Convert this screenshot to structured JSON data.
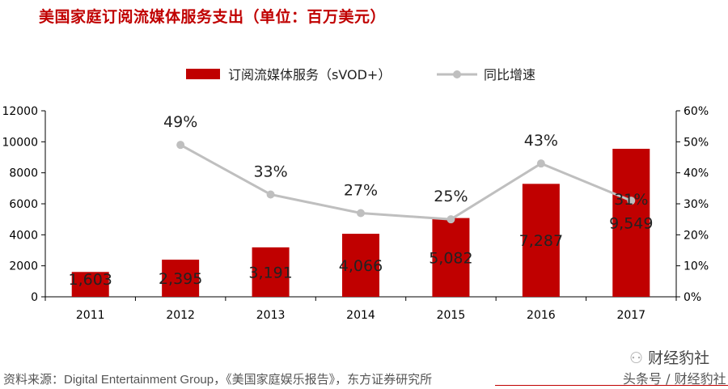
{
  "chart_data": {
    "type": "bar+line",
    "title": "美国家庭订阅流媒体服务支出（单位：百万美元）",
    "categories": [
      "2011",
      "2012",
      "2013",
      "2014",
      "2015",
      "2016",
      "2017"
    ],
    "series": [
      {
        "name": "订阅流媒体服务（sVOD+）",
        "type": "bar",
        "axis": "left",
        "color": "#c00000",
        "values": [
          1603,
          2395,
          3191,
          4066,
          5082,
          7287,
          9549
        ],
        "labels": [
          "1,603",
          "2,395",
          "3,191",
          "4,066",
          "5,082",
          "7,287",
          "9,549"
        ]
      },
      {
        "name": "同比增速",
        "type": "line",
        "axis": "right",
        "color": "#bfbfbf",
        "values": [
          null,
          49,
          33,
          27,
          25,
          43,
          31
        ],
        "labels": [
          "",
          "49%",
          "33%",
          "27%",
          "25%",
          "43%",
          "31%"
        ]
      }
    ],
    "y_left": {
      "range": [
        0,
        12000
      ],
      "ticks": [
        "0",
        "2000",
        "4000",
        "6000",
        "8000",
        "10000",
        "12000"
      ]
    },
    "y_right": {
      "range": [
        0,
        60
      ],
      "ticks": [
        "0%",
        "10%",
        "20%",
        "30%",
        "40%",
        "50%",
        "60%"
      ]
    },
    "legend": "top",
    "grid": false
  },
  "source": "资料来源：Digital Entertainment Group，《美国家庭娱乐报告》，东方证券研究所",
  "watermark": {
    "line1": "财经豹社",
    "line2": "头条号 / 财经豹社"
  }
}
